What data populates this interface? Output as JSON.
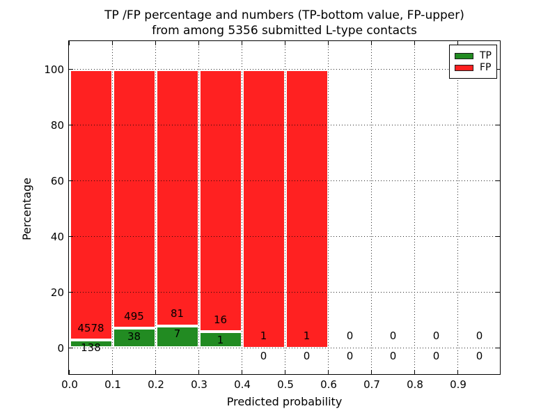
{
  "chart_data": {
    "type": "bar",
    "stacked": true,
    "unit": "percent_of_bin_total",
    "title_lines": [
      "TP /FP percentage and numbers (TP-bottom value, FP-upper)",
      "from among 5356 submitted L-type contacts"
    ],
    "xlabel": "Predicted probability",
    "ylabel": "Percentage",
    "total_submitted": 5356,
    "categories": [
      "0.0-0.1",
      "0.1-0.2",
      "0.2-0.3",
      "0.3-0.4",
      "0.4-0.5",
      "0.5-0.6",
      "0.6-0.7",
      "0.7-0.8",
      "0.8-0.9",
      "0.9-1.0"
    ],
    "series": [
      {
        "name": "TP",
        "color": "#228b22",
        "counts": [
          138,
          38,
          7,
          1,
          0,
          0,
          0,
          0,
          0,
          0
        ]
      },
      {
        "name": "FP",
        "color": "#ff2121",
        "counts": [
          4578,
          495,
          81,
          16,
          1,
          1,
          0,
          0,
          0,
          0
        ]
      }
    ],
    "x_tick_labels": [
      "0.0",
      "0.1",
      "0.2",
      "0.3",
      "0.4",
      "0.5",
      "0.6",
      "0.7",
      "0.8",
      "0.9"
    ],
    "y_tick_labels": [
      "0",
      "20",
      "40",
      "60",
      "80",
      "100"
    ],
    "xlim": [
      0.0,
      1.0
    ],
    "ylim": [
      -9.3,
      110.3
    ],
    "grid": {
      "style": "dotted",
      "color": "#000000"
    },
    "bar_edge_color": "#ffffff",
    "legend": {
      "position": "upper right",
      "entries": [
        {
          "label": "TP",
          "color": "#228b22"
        },
        {
          "label": "FP",
          "color": "#ff2121"
        }
      ]
    }
  }
}
